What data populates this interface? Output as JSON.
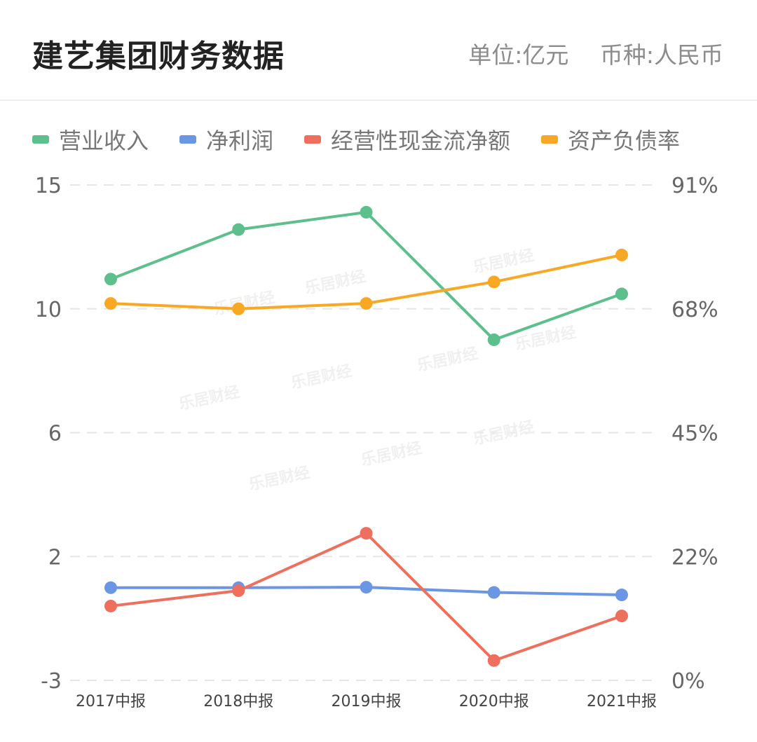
{
  "header": {
    "title": "建艺集团财务数据",
    "unit_label": "单位:亿元",
    "currency_label": "币种:人民币"
  },
  "chart_data": {
    "type": "line",
    "categories": [
      "2017中报",
      "2018中报",
      "2019中报",
      "2020中报",
      "2021中报"
    ],
    "left_axis": {
      "ticks": [
        "15",
        "10",
        "6",
        "2",
        "-3"
      ],
      "ylim": [
        -3,
        15
      ]
    },
    "right_axis": {
      "ticks": [
        "91%",
        "68%",
        "45%",
        "22%",
        "0%"
      ],
      "ylim": [
        0,
        91
      ]
    },
    "grid": true,
    "legend_position": "top-left",
    "series": [
      {
        "name": "营业收入",
        "axis": "left",
        "color": "#5cbf8c",
        "values": [
          11.2,
          13.2,
          13.9,
          9.0,
          10.6
        ]
      },
      {
        "name": "净利润",
        "axis": "left",
        "color": "#6a96e3",
        "values": [
          0.74,
          0.74,
          0.76,
          0.55,
          0.45
        ]
      },
      {
        "name": "经营性现金流净额",
        "axis": "left",
        "color": "#ef6f5e",
        "values": [
          0.0,
          0.62,
          2.75,
          -2.2,
          -0.4
        ]
      },
      {
        "name": "资产负债率",
        "axis": "right",
        "color": "#f9a825",
        "values": [
          69,
          68,
          69,
          73,
          78
        ]
      }
    ]
  },
  "watermark": "乐居财经"
}
